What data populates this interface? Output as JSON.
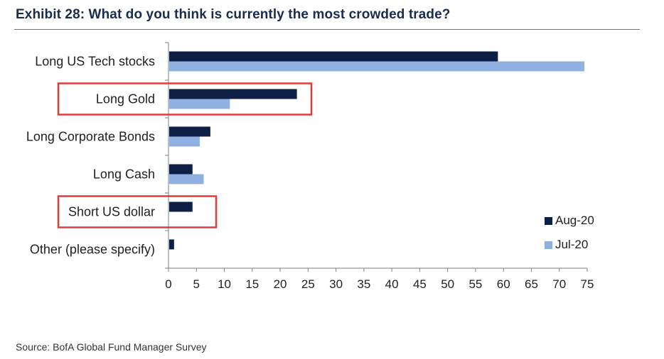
{
  "title": "Exhibit 28: What do you think is currently the most crowded trade?",
  "source": "Source: BofA Global Fund Manager Survey",
  "chart_data": {
    "type": "bar",
    "orientation": "horizontal",
    "categories": [
      "Long US Tech stocks",
      "Long Gold",
      "Long Corporate Bonds",
      "Long Cash",
      "Short US dollar",
      "Other (please specify)"
    ],
    "series": [
      {
        "name": "Aug-20",
        "color": "#0d1f44",
        "values": [
          59,
          23,
          7.5,
          4.3,
          4.3,
          1
        ]
      },
      {
        "name": "Jul-20",
        "color": "#8fb0e0",
        "values": [
          74.5,
          11,
          5.6,
          6.3,
          0,
          0
        ]
      }
    ],
    "xlim": [
      0,
      75
    ],
    "xticks": [
      "0",
      "5",
      "10",
      "15",
      "20",
      "25",
      "30",
      "35",
      "40",
      "45",
      "50",
      "55",
      "60",
      "65",
      "70",
      "75"
    ],
    "highlighted_categories": [
      "Long Gold",
      "Short US dollar"
    ],
    "highlight_color": "#e03c3c",
    "legend_position": "bottom-right",
    "xlabel": "",
    "ylabel": ""
  }
}
